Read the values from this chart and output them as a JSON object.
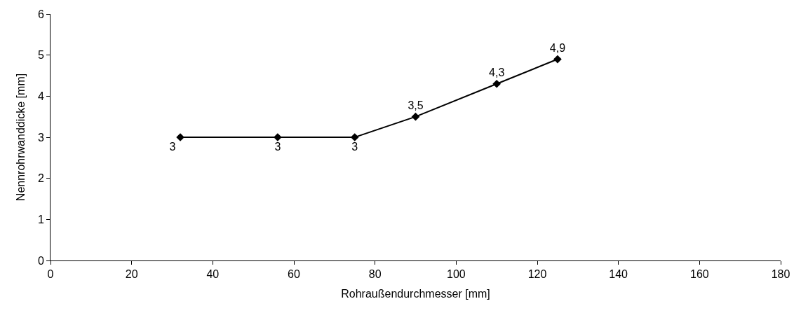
{
  "chart_data": {
    "type": "line",
    "xlabel": "Rohraußendurchmesser [mm]",
    "ylabel": "Nennrohrwanddicke [mm]",
    "x": [
      32,
      56,
      75,
      90,
      110,
      125
    ],
    "series": [
      {
        "color": "#000000",
        "values": [
          3,
          3,
          3,
          3.5,
          4.3,
          4.9
        ],
        "value_labels": [
          "3",
          "3",
          "3",
          "3,5",
          "4,3",
          "4,9"
        ]
      }
    ],
    "xlim": [
      0,
      180
    ],
    "xticks": [
      0,
      20,
      40,
      60,
      80,
      100,
      120,
      140,
      160,
      180
    ],
    "ylim": [
      0,
      6
    ],
    "yticks": [
      0,
      1,
      2,
      3,
      4,
      5,
      6
    ],
    "grid": false,
    "marker": "diamond",
    "line_style": "solid"
  }
}
